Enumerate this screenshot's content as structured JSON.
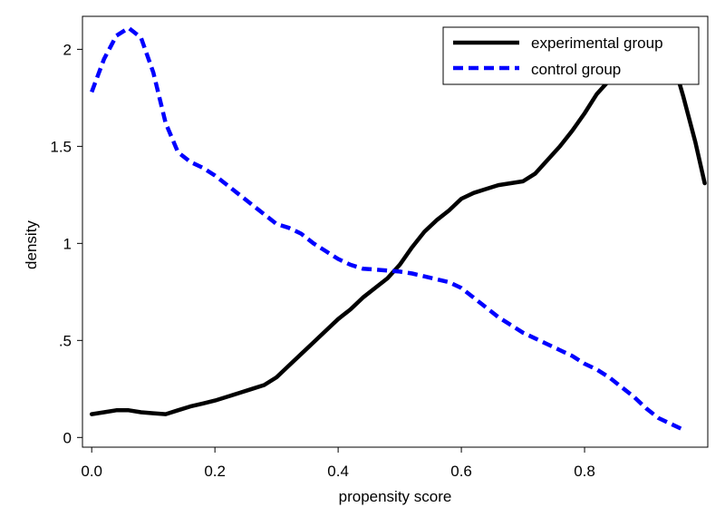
{
  "chart_data": {
    "type": "line",
    "title": "",
    "xlabel": "propensity score",
    "ylabel": "density",
    "xlim": [
      -0.015,
      1.0
    ],
    "ylim": [
      -0.05,
      2.17
    ],
    "x_ticks": [
      {
        "value": 0.0,
        "label": "0.0"
      },
      {
        "value": 0.2,
        "label": "0.2"
      },
      {
        "value": 0.4,
        "label": "0.4"
      },
      {
        "value": 0.6,
        "label": "0.6"
      },
      {
        "value": 0.8,
        "label": "0.8"
      }
    ],
    "y_ticks": [
      {
        "value": 0,
        "label": "0"
      },
      {
        "value": 0.5,
        "label": ".5"
      },
      {
        "value": 1,
        "label": "1"
      },
      {
        "value": 1.5,
        "label": "1.5"
      },
      {
        "value": 2,
        "label": "2"
      }
    ],
    "grid": false,
    "legend_position": "top-right",
    "series": [
      {
        "name": "experimental group",
        "color": "#000000",
        "style": "solid",
        "points": [
          [
            0.0,
            0.12
          ],
          [
            0.02,
            0.13
          ],
          [
            0.04,
            0.14
          ],
          [
            0.06,
            0.14
          ],
          [
            0.08,
            0.13
          ],
          [
            0.1,
            0.125
          ],
          [
            0.12,
            0.12
          ],
          [
            0.14,
            0.14
          ],
          [
            0.16,
            0.16
          ],
          [
            0.18,
            0.175
          ],
          [
            0.2,
            0.19
          ],
          [
            0.22,
            0.21
          ],
          [
            0.24,
            0.23
          ],
          [
            0.26,
            0.25
          ],
          [
            0.28,
            0.27
          ],
          [
            0.3,
            0.31
          ],
          [
            0.32,
            0.37
          ],
          [
            0.34,
            0.43
          ],
          [
            0.36,
            0.49
          ],
          [
            0.38,
            0.55
          ],
          [
            0.4,
            0.61
          ],
          [
            0.42,
            0.66
          ],
          [
            0.44,
            0.72
          ],
          [
            0.46,
            0.77
          ],
          [
            0.48,
            0.82
          ],
          [
            0.5,
            0.89
          ],
          [
            0.52,
            0.98
          ],
          [
            0.54,
            1.06
          ],
          [
            0.56,
            1.12
          ],
          [
            0.58,
            1.17
          ],
          [
            0.6,
            1.23
          ],
          [
            0.62,
            1.26
          ],
          [
            0.64,
            1.28
          ],
          [
            0.66,
            1.3
          ],
          [
            0.68,
            1.31
          ],
          [
            0.7,
            1.32
          ],
          [
            0.72,
            1.36
          ],
          [
            0.74,
            1.43
          ],
          [
            0.76,
            1.5
          ],
          [
            0.78,
            1.58
          ],
          [
            0.8,
            1.67
          ],
          [
            0.82,
            1.77
          ],
          [
            0.84,
            1.84
          ],
          [
            0.86,
            1.91
          ],
          [
            0.88,
            1.96
          ],
          [
            0.9,
            1.99
          ],
          [
            0.92,
            2.01
          ],
          [
            0.94,
            1.98
          ],
          [
            0.96,
            1.76
          ],
          [
            0.98,
            1.52
          ],
          [
            0.995,
            1.31
          ]
        ]
      },
      {
        "name": "control group",
        "color": "#0000ff",
        "style": "dashed",
        "points": [
          [
            0.0,
            1.78
          ],
          [
            0.02,
            1.95
          ],
          [
            0.04,
            2.07
          ],
          [
            0.06,
            2.11
          ],
          [
            0.08,
            2.06
          ],
          [
            0.1,
            1.88
          ],
          [
            0.12,
            1.62
          ],
          [
            0.14,
            1.47
          ],
          [
            0.16,
            1.42
          ],
          [
            0.18,
            1.39
          ],
          [
            0.2,
            1.35
          ],
          [
            0.22,
            1.3
          ],
          [
            0.24,
            1.25
          ],
          [
            0.26,
            1.2
          ],
          [
            0.28,
            1.15
          ],
          [
            0.3,
            1.1
          ],
          [
            0.32,
            1.08
          ],
          [
            0.34,
            1.05
          ],
          [
            0.36,
            1.0
          ],
          [
            0.38,
            0.96
          ],
          [
            0.4,
            0.92
          ],
          [
            0.42,
            0.89
          ],
          [
            0.44,
            0.87
          ],
          [
            0.46,
            0.865
          ],
          [
            0.48,
            0.86
          ],
          [
            0.5,
            0.855
          ],
          [
            0.52,
            0.845
          ],
          [
            0.54,
            0.83
          ],
          [
            0.56,
            0.815
          ],
          [
            0.58,
            0.8
          ],
          [
            0.6,
            0.77
          ],
          [
            0.62,
            0.72
          ],
          [
            0.64,
            0.67
          ],
          [
            0.66,
            0.62
          ],
          [
            0.68,
            0.58
          ],
          [
            0.7,
            0.54
          ],
          [
            0.72,
            0.51
          ],
          [
            0.74,
            0.48
          ],
          [
            0.76,
            0.45
          ],
          [
            0.78,
            0.42
          ],
          [
            0.8,
            0.38
          ],
          [
            0.82,
            0.35
          ],
          [
            0.84,
            0.31
          ],
          [
            0.86,
            0.26
          ],
          [
            0.88,
            0.21
          ],
          [
            0.9,
            0.15
          ],
          [
            0.92,
            0.1
          ],
          [
            0.94,
            0.07
          ],
          [
            0.96,
            0.04
          ]
        ]
      }
    ]
  }
}
